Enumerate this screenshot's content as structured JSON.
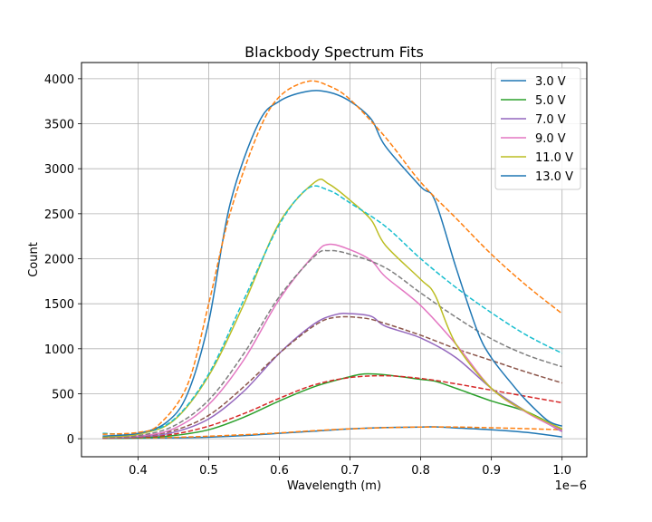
{
  "chart_data": {
    "type": "line",
    "title": "Blackbody Spectrum Fits",
    "xlabel": "Wavelength (m)",
    "ylabel": "Count",
    "x_offset_label": "1e−6",
    "xlim": [
      0.32,
      1.035
    ],
    "ylim": [
      -200,
      4180
    ],
    "xticks": [
      0.4,
      0.5,
      0.6,
      0.7,
      0.8,
      0.9,
      1.0
    ],
    "xtick_labels": [
      "0.4",
      "0.5",
      "0.6",
      "0.7",
      "0.8",
      "0.9",
      "1.0"
    ],
    "yticks": [
      0,
      500,
      1000,
      1500,
      2000,
      2500,
      3000,
      3500,
      4000
    ],
    "ytick_labels": [
      "0",
      "500",
      "1000",
      "1500",
      "2000",
      "2500",
      "3000",
      "3500",
      "4000"
    ],
    "grid": true,
    "legend_position": "top-right",
    "series": [
      {
        "name": "3.0 V",
        "color": "#1f77b4",
        "style": "solid",
        "points": [
          [
            0.35,
            5
          ],
          [
            0.4,
            6
          ],
          [
            0.45,
            10
          ],
          [
            0.5,
            18
          ],
          [
            0.55,
            35
          ],
          [
            0.6,
            60
          ],
          [
            0.65,
            85
          ],
          [
            0.7,
            110
          ],
          [
            0.75,
            125
          ],
          [
            0.8,
            130
          ],
          [
            0.82,
            132
          ],
          [
            0.85,
            120
          ],
          [
            0.9,
            100
          ],
          [
            0.95,
            70
          ],
          [
            1.0,
            20
          ]
        ]
      },
      {
        "name": "",
        "color": "#ff7f0e",
        "style": "dashed",
        "points": [
          [
            0.35,
            5
          ],
          [
            0.4,
            8
          ],
          [
            0.45,
            15
          ],
          [
            0.5,
            28
          ],
          [
            0.55,
            45
          ],
          [
            0.6,
            65
          ],
          [
            0.65,
            90
          ],
          [
            0.7,
            110
          ],
          [
            0.75,
            123
          ],
          [
            0.8,
            130
          ],
          [
            0.85,
            130
          ],
          [
            0.9,
            122
          ],
          [
            0.95,
            112
          ],
          [
            1.0,
            100
          ]
        ]
      },
      {
        "name": "5.0 V",
        "color": "#2ca02c",
        "style": "solid",
        "points": [
          [
            0.35,
            5
          ],
          [
            0.4,
            10
          ],
          [
            0.45,
            35
          ],
          [
            0.5,
            100
          ],
          [
            0.55,
            240
          ],
          [
            0.6,
            420
          ],
          [
            0.65,
            580
          ],
          [
            0.7,
            690
          ],
          [
            0.72,
            720
          ],
          [
            0.75,
            710
          ],
          [
            0.8,
            660
          ],
          [
            0.82,
            640
          ],
          [
            0.85,
            560
          ],
          [
            0.9,
            420
          ],
          [
            0.95,
            300
          ],
          [
            1.0,
            100
          ]
        ]
      },
      {
        "name": "",
        "color": "#d62728",
        "style": "dashed",
        "points": [
          [
            0.35,
            5
          ],
          [
            0.4,
            15
          ],
          [
            0.45,
            50
          ],
          [
            0.5,
            140
          ],
          [
            0.55,
            280
          ],
          [
            0.6,
            450
          ],
          [
            0.65,
            600
          ],
          [
            0.7,
            680
          ],
          [
            0.75,
            700
          ],
          [
            0.8,
            670
          ],
          [
            0.85,
            610
          ],
          [
            0.9,
            540
          ],
          [
            0.95,
            470
          ],
          [
            1.0,
            400
          ]
        ]
      },
      {
        "name": "7.0 V",
        "color": "#9467bd",
        "style": "solid",
        "points": [
          [
            0.35,
            10
          ],
          [
            0.4,
            20
          ],
          [
            0.45,
            70
          ],
          [
            0.5,
            220
          ],
          [
            0.55,
            530
          ],
          [
            0.6,
            950
          ],
          [
            0.65,
            1280
          ],
          [
            0.68,
            1380
          ],
          [
            0.7,
            1390
          ],
          [
            0.73,
            1360
          ],
          [
            0.75,
            1250
          ],
          [
            0.8,
            1120
          ],
          [
            0.85,
            900
          ],
          [
            0.9,
            560
          ],
          [
            0.95,
            300
          ],
          [
            1.0,
            80
          ]
        ]
      },
      {
        "name": "",
        "color": "#8c564b",
        "style": "dashed",
        "points": [
          [
            0.35,
            10
          ],
          [
            0.4,
            25
          ],
          [
            0.45,
            90
          ],
          [
            0.5,
            260
          ],
          [
            0.55,
            580
          ],
          [
            0.6,
            950
          ],
          [
            0.65,
            1260
          ],
          [
            0.68,
            1350
          ],
          [
            0.72,
            1340
          ],
          [
            0.75,
            1280
          ],
          [
            0.8,
            1150
          ],
          [
            0.85,
            1000
          ],
          [
            0.9,
            870
          ],
          [
            0.95,
            740
          ],
          [
            1.0,
            620
          ]
        ]
      },
      {
        "name": "9.0 V",
        "color": "#e377c2",
        "style": "solid",
        "points": [
          [
            0.35,
            15
          ],
          [
            0.4,
            30
          ],
          [
            0.45,
            110
          ],
          [
            0.5,
            380
          ],
          [
            0.55,
            880
          ],
          [
            0.6,
            1550
          ],
          [
            0.65,
            2050
          ],
          [
            0.67,
            2160
          ],
          [
            0.7,
            2100
          ],
          [
            0.73,
            1980
          ],
          [
            0.75,
            1800
          ],
          [
            0.8,
            1480
          ],
          [
            0.85,
            1050
          ],
          [
            0.9,
            560
          ],
          [
            0.95,
            290
          ],
          [
            1.0,
            90
          ]
        ]
      },
      {
        "name": "",
        "color": "#7f7f7f",
        "style": "dashed",
        "points": [
          [
            0.35,
            15
          ],
          [
            0.4,
            35
          ],
          [
            0.45,
            140
          ],
          [
            0.5,
            430
          ],
          [
            0.55,
            950
          ],
          [
            0.6,
            1580
          ],
          [
            0.65,
            2030
          ],
          [
            0.67,
            2090
          ],
          [
            0.7,
            2050
          ],
          [
            0.75,
            1900
          ],
          [
            0.8,
            1620
          ],
          [
            0.85,
            1350
          ],
          [
            0.9,
            1110
          ],
          [
            0.95,
            930
          ],
          [
            1.0,
            800
          ]
        ]
      },
      {
        "name": "11.0 V",
        "color": "#bcbd22",
        "style": "solid",
        "points": [
          [
            0.35,
            20
          ],
          [
            0.4,
            50
          ],
          [
            0.45,
            200
          ],
          [
            0.5,
            700
          ],
          [
            0.55,
            1500
          ],
          [
            0.6,
            2400
          ],
          [
            0.65,
            2850
          ],
          [
            0.67,
            2830
          ],
          [
            0.7,
            2650
          ],
          [
            0.73,
            2430
          ],
          [
            0.75,
            2150
          ],
          [
            0.8,
            1770
          ],
          [
            0.82,
            1600
          ],
          [
            0.85,
            1050
          ],
          [
            0.9,
            560
          ],
          [
            0.95,
            300
          ],
          [
            1.0,
            110
          ]
        ]
      },
      {
        "name": "",
        "color": "#17becf",
        "style": "dashed",
        "points": [
          [
            0.35,
            60
          ],
          [
            0.4,
            60
          ],
          [
            0.45,
            210
          ],
          [
            0.5,
            720
          ],
          [
            0.55,
            1550
          ],
          [
            0.6,
            2380
          ],
          [
            0.64,
            2780
          ],
          [
            0.67,
            2760
          ],
          [
            0.7,
            2620
          ],
          [
            0.75,
            2360
          ],
          [
            0.8,
            2000
          ],
          [
            0.85,
            1680
          ],
          [
            0.9,
            1400
          ],
          [
            0.95,
            1150
          ],
          [
            1.0,
            950
          ]
        ]
      },
      {
        "name": "13.0 V",
        "color": "#1f77b4",
        "style": "solid",
        "points": [
          [
            0.35,
            30
          ],
          [
            0.4,
            60
          ],
          [
            0.44,
            180
          ],
          [
            0.47,
            500
          ],
          [
            0.5,
            1300
          ],
          [
            0.53,
            2600
          ],
          [
            0.57,
            3500
          ],
          [
            0.6,
            3750
          ],
          [
            0.64,
            3860
          ],
          [
            0.67,
            3850
          ],
          [
            0.7,
            3750
          ],
          [
            0.73,
            3550
          ],
          [
            0.75,
            3250
          ],
          [
            0.8,
            2800
          ],
          [
            0.82,
            2650
          ],
          [
            0.85,
            1900
          ],
          [
            0.88,
            1200
          ],
          [
            0.9,
            900
          ],
          [
            0.93,
            600
          ],
          [
            0.95,
            420
          ],
          [
            0.98,
            200
          ],
          [
            1.0,
            140
          ]
        ]
      },
      {
        "name": "",
        "color": "#ff7f0e",
        "style": "dashed",
        "points": [
          [
            0.35,
            50
          ],
          [
            0.4,
            70
          ],
          [
            0.43,
            160
          ],
          [
            0.47,
            600
          ],
          [
            0.5,
            1500
          ],
          [
            0.53,
            2500
          ],
          [
            0.57,
            3400
          ],
          [
            0.6,
            3800
          ],
          [
            0.64,
            3970
          ],
          [
            0.67,
            3920
          ],
          [
            0.7,
            3770
          ],
          [
            0.75,
            3350
          ],
          [
            0.8,
            2850
          ],
          [
            0.85,
            2450
          ],
          [
            0.9,
            2050
          ],
          [
            0.95,
            1700
          ],
          [
            1.0,
            1390
          ]
        ]
      }
    ]
  }
}
